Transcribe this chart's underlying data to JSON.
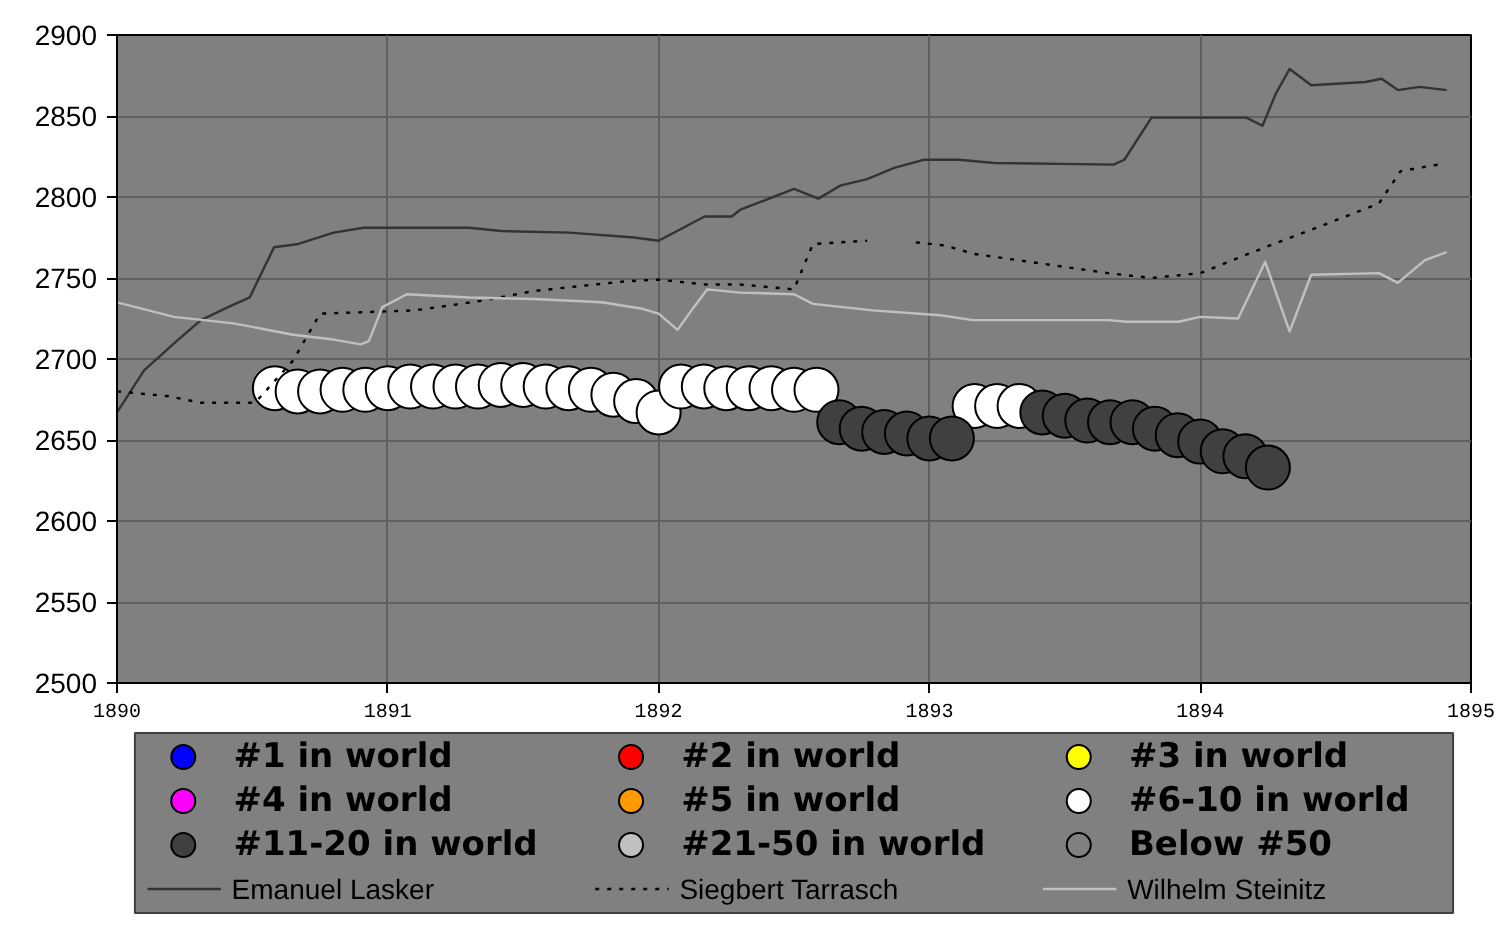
{
  "chart_data": {
    "type": "scatter",
    "xlim": [
      1890,
      1895
    ],
    "ylim": [
      2500,
      2900
    ],
    "xticks": [
      1890,
      1891,
      1892,
      1893,
      1894,
      1895
    ],
    "yticks": [
      2500,
      2550,
      2600,
      2650,
      2700,
      2750,
      2800,
      2850,
      2900
    ],
    "grid": true,
    "legend": "bottom",
    "marker": "circle",
    "series": [
      {
        "name": "#1 in world",
        "color": "#0000ff"
      },
      {
        "name": "#2 in world",
        "color": "#ff0000"
      },
      {
        "name": "#3 in world",
        "color": "#ffff00"
      },
      {
        "name": "#4 in world",
        "color": "#ff00ff"
      },
      {
        "name": "#5 in world",
        "color": "#ff9900"
      },
      {
        "name": "#6-10 in world",
        "color": "#ffffff",
        "x": [
          1890.583,
          1890.667,
          1890.75,
          1890.833,
          1890.917,
          1891.0,
          1891.083,
          1891.167,
          1891.25,
          1891.333,
          1891.417,
          1891.5,
          1891.583,
          1891.667,
          1891.75,
          1891.833,
          1891.917,
          1892.0,
          1892.083,
          1892.167,
          1892.25,
          1892.333,
          1892.417,
          1892.5,
          1892.583,
          1893.167,
          1893.25,
          1893.333
        ],
        "values": [
          2682,
          2680,
          2680,
          2681,
          2681,
          2682,
          2683,
          2683,
          2683,
          2683,
          2684,
          2684,
          2683,
          2682,
          2681,
          2678,
          2674,
          2667,
          2683,
          2683,
          2682,
          2682,
          2682,
          2681,
          2681,
          2671,
          2671,
          2671
        ]
      },
      {
        "name": "#11-20 in world",
        "color": "#404040",
        "x": [
          1892.667,
          1892.75,
          1892.833,
          1892.917,
          1893.0,
          1893.083,
          1893.417,
          1893.5,
          1893.583,
          1893.667,
          1893.75,
          1893.833,
          1893.917,
          1894.0,
          1894.083,
          1894.167,
          1894.25
        ],
        "values": [
          2661,
          2657,
          2655,
          2654,
          2651,
          2651,
          2667,
          2665,
          2662,
          2661,
          2661,
          2657,
          2653,
          2649,
          2643,
          2640,
          2633
        ]
      },
      {
        "name": "#21-50 in world",
        "color": "#c0c0c0"
      },
      {
        "name": "Below #50",
        "color": "#808080"
      },
      {
        "name": "Emanuel Lasker",
        "color": "#333333",
        "type": "line",
        "line_style": "solid",
        "marker": "none",
        "x": [
          1890.0,
          1890.1,
          1890.22,
          1890.31,
          1890.41,
          1890.49,
          1890.58,
          1890.67,
          1890.8,
          1890.91,
          1891.3,
          1891.42,
          1891.67,
          1891.91,
          1892.0,
          1892.17,
          1892.27,
          1892.3,
          1892.5,
          1892.59,
          1892.67,
          1892.77,
          1892.87,
          1892.98,
          1893.11,
          1893.24,
          1893.68,
          1893.72,
          1893.82,
          1893.9,
          1894.17,
          1894.23,
          1894.28,
          1894.33,
          1894.41,
          1894.61,
          1894.67,
          1894.73,
          1894.81,
          1894.91
        ],
        "values": [
          2667,
          2693,
          2711,
          2724,
          2732,
          2738,
          2769,
          2771,
          2778,
          2781,
          2781,
          2779,
          2778,
          2775,
          2773,
          2788,
          2788,
          2792,
          2805,
          2799,
          2807,
          2811,
          2818,
          2823,
          2823,
          2821,
          2820,
          2823,
          2849,
          2849,
          2849,
          2844,
          2864,
          2879,
          2869,
          2871,
          2873,
          2866,
          2868,
          2866
        ]
      },
      {
        "name": "Siegbert Tarrasch",
        "color": "#000000",
        "type": "line",
        "line_style": "dotted",
        "marker": "none",
        "x": [
          1890.0,
          1890.19,
          1890.31,
          1890.51,
          1890.65,
          1890.75,
          1891.1,
          1891.35,
          1891.54,
          1891.88,
          1892.0,
          1892.17,
          1892.3,
          1892.5,
          1892.57,
          1892.77,
          1892.85,
          1892.95,
          1893.06,
          1893.16,
          1893.41,
          1893.66,
          1893.82,
          1894.0,
          1894.24,
          1894.46,
          1894.66,
          1894.74,
          1894.88
        ],
        "values": [
          2680,
          2677,
          2673,
          2673,
          2699,
          2728,
          2730,
          2736,
          2742,
          2748,
          2749,
          2746,
          2746,
          2743,
          2771,
          2773,
          null,
          2772,
          2770,
          2765,
          2759,
          2753,
          2750,
          2753,
          2769,
          2783,
          2796,
          2816,
          2820
        ]
      },
      {
        "name": "Wilhelm Steinitz",
        "color": "#c0c0c0",
        "type": "line",
        "line_style": "solid",
        "marker": "none",
        "x": [
          1890.0,
          1890.21,
          1890.43,
          1890.65,
          1890.8,
          1890.9,
          1890.93,
          1890.98,
          1891.07,
          1891.3,
          1891.54,
          1891.79,
          1891.94,
          1892.0,
          1892.07,
          1892.13,
          1892.18,
          1892.3,
          1892.5,
          1892.57,
          1892.79,
          1893.04,
          1893.16,
          1893.66,
          1893.73,
          1893.92,
          1894.0,
          1894.14,
          1894.24,
          1894.33,
          1894.41,
          1894.66,
          1894.73,
          1894.83,
          1894.91
        ],
        "values": [
          2735,
          2726,
          2722,
          2715,
          2712,
          2709,
          2711,
          2732,
          2740,
          2738,
          2737,
          2735,
          2731,
          2728,
          2718,
          2732,
          2743,
          2741,
          2740,
          2734,
          2730,
          2727,
          2724,
          2724,
          2723,
          2723,
          2726,
          2725,
          2760,
          2717,
          2752,
          2753,
          2747,
          2761,
          2766
        ]
      }
    ]
  }
}
